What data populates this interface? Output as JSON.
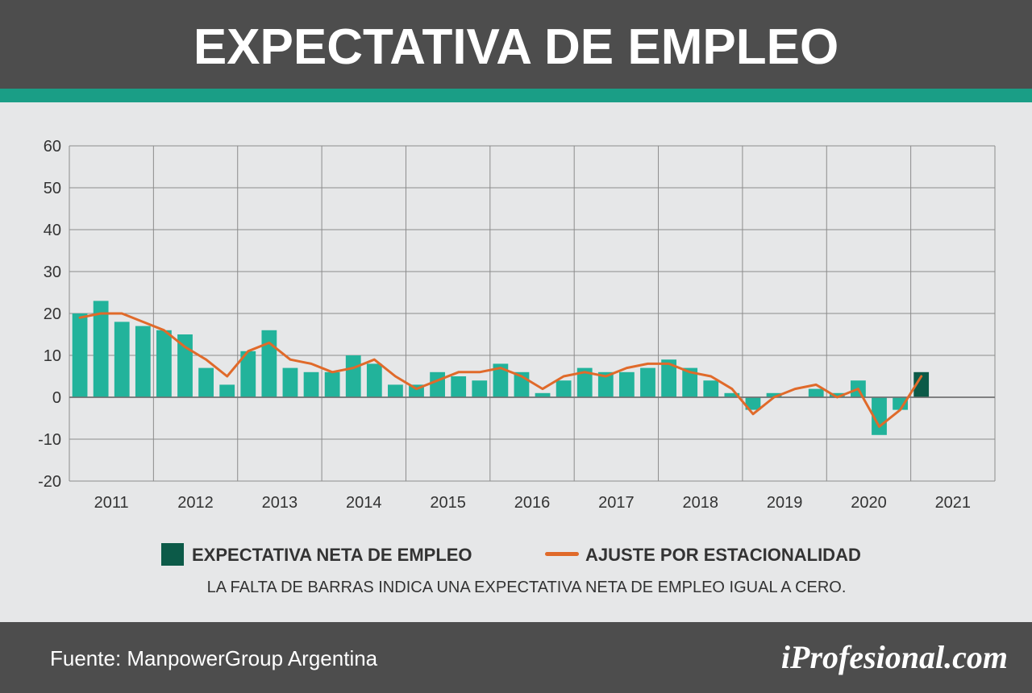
{
  "header": {
    "title": "EXPECTATIVA DE EMPLEO"
  },
  "legend": {
    "bar_label": "EXPECTATIVA NETA DE EMPLEO",
    "line_label": "AJUSTE POR ESTACIONALIDAD"
  },
  "note": "LA FALTA DE BARRAS INDICA UNA EXPECTATIVA NETA DE EMPLEO IGUAL A CERO.",
  "footer": {
    "source": "Fuente: ManpowerGroup Argentina",
    "brand": "iProfesional.com"
  },
  "colors": {
    "bar": "#22b39b",
    "bar_highlight": "#0c5a48",
    "line": "#e06a2a",
    "grid": "#8c8c8c",
    "header": "#4d4d4d",
    "accent": "#1a9e86"
  },
  "chart_data": {
    "type": "bar",
    "ylim": [
      -20,
      60
    ],
    "yticks": [
      60,
      50,
      40,
      30,
      20,
      10,
      0,
      -10,
      -20
    ],
    "years": [
      "2011",
      "2012",
      "2013",
      "2014",
      "2015",
      "2016",
      "2017",
      "2018",
      "2019",
      "2020",
      "2021"
    ],
    "quarters_per_year": 4,
    "series": [
      {
        "name": "EXPECTATIVA NETA DE EMPLEO",
        "type": "bar",
        "values": [
          20,
          23,
          18,
          17,
          16,
          15,
          7,
          3,
          11,
          16,
          7,
          6,
          6,
          10,
          8,
          3,
          3,
          6,
          5,
          4,
          8,
          6,
          1,
          4,
          7,
          6,
          6,
          7,
          9,
          7,
          4,
          1,
          -3,
          1,
          0,
          2,
          1,
          4,
          -9,
          -3,
          6
        ],
        "highlight_last": true
      },
      {
        "name": "AJUSTE POR ESTACIONALIDAD",
        "type": "line",
        "values": [
          19,
          20,
          20,
          18,
          16,
          12,
          9,
          5,
          11,
          13,
          9,
          8,
          6,
          7,
          9,
          5,
          2,
          4,
          6,
          6,
          7,
          5,
          2,
          5,
          6,
          5,
          7,
          8,
          8,
          6,
          5,
          2,
          -4,
          0,
          2,
          3,
          0,
          2,
          -7,
          -3,
          5
        ]
      }
    ]
  }
}
